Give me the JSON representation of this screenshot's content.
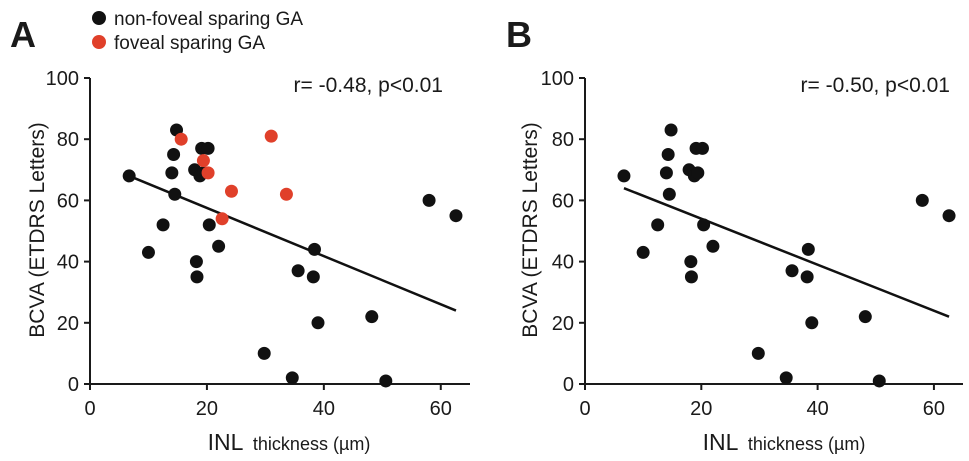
{
  "legend": [
    {
      "label": "non-foveal sparing GA",
      "color": "#111111"
    },
    {
      "label": "foveal sparing GA",
      "color": "#e0402a"
    }
  ],
  "chart_data": [
    {
      "type": "scatter",
      "panel": "A",
      "annotation": "r= -0.48, p<0.01",
      "ylabel": "BCVA (ETDRS Letters)",
      "xlabel_main": "INL",
      "xlabel_sub": "thickness (µm)",
      "xlim": [
        0,
        65
      ],
      "ylim": [
        0,
        100
      ],
      "xticks": [
        0,
        20,
        40,
        60
      ],
      "yticks": [
        0,
        20,
        40,
        60,
        80,
        100
      ],
      "grid": false,
      "legend_position": "top-left",
      "series": [
        {
          "name": "non-foveal sparing GA",
          "color": "#111111",
          "points": [
            [
              6.7,
              68
            ],
            [
              10,
              43
            ],
            [
              12.5,
              52
            ],
            [
              14,
              69
            ],
            [
              14.3,
              75
            ],
            [
              14.5,
              62
            ],
            [
              14.8,
              83
            ],
            [
              17.9,
              70
            ],
            [
              18.2,
              40
            ],
            [
              18.3,
              35
            ],
            [
              18.8,
              68
            ],
            [
              19.1,
              77
            ],
            [
              19.4,
              69
            ],
            [
              20.2,
              77
            ],
            [
              20.4,
              52
            ],
            [
              22,
              45
            ],
            [
              29.8,
              10
            ],
            [
              34.6,
              2
            ],
            [
              35.6,
              37
            ],
            [
              38.2,
              35
            ],
            [
              38.4,
              44
            ],
            [
              39,
              20
            ],
            [
              48.2,
              22
            ],
            [
              50.6,
              1
            ],
            [
              58,
              60
            ],
            [
              62.6,
              55
            ]
          ]
        },
        {
          "name": "foveal sparing GA",
          "color": "#e0402a",
          "points": [
            [
              15.6,
              80
            ],
            [
              19.4,
              73
            ],
            [
              20.2,
              69
            ],
            [
              22.6,
              54
            ],
            [
              24.2,
              63
            ],
            [
              31,
              81
            ],
            [
              33.6,
              62
            ]
          ]
        }
      ],
      "regression_line": {
        "x": [
          6.7,
          62.6
        ],
        "y": [
          68,
          24
        ]
      }
    },
    {
      "type": "scatter",
      "panel": "B",
      "annotation": "r= -0.50, p<0.01",
      "ylabel": "BCVA (ETDRS Letters)",
      "xlabel_main": "INL",
      "xlabel_sub": "thickness (µm)",
      "xlim": [
        0,
        65
      ],
      "ylim": [
        0,
        100
      ],
      "xticks": [
        0,
        20,
        40,
        60
      ],
      "yticks": [
        0,
        20,
        40,
        60,
        80,
        100
      ],
      "grid": false,
      "series": [
        {
          "name": "non-foveal sparing GA",
          "color": "#111111",
          "points": [
            [
              6.7,
              68
            ],
            [
              10,
              43
            ],
            [
              12.5,
              52
            ],
            [
              14,
              69
            ],
            [
              14.3,
              75
            ],
            [
              14.5,
              62
            ],
            [
              14.8,
              83
            ],
            [
              17.9,
              70
            ],
            [
              18.2,
              40
            ],
            [
              18.3,
              35
            ],
            [
              18.8,
              68
            ],
            [
              19.1,
              77
            ],
            [
              19.4,
              69
            ],
            [
              20.2,
              77
            ],
            [
              20.4,
              52
            ],
            [
              22,
              45
            ],
            [
              29.8,
              10
            ],
            [
              34.6,
              2
            ],
            [
              35.6,
              37
            ],
            [
              38.2,
              35
            ],
            [
              38.4,
              44
            ],
            [
              39,
              20
            ],
            [
              48.2,
              22
            ],
            [
              50.6,
              1
            ],
            [
              58,
              60
            ],
            [
              62.6,
              55
            ]
          ]
        }
      ],
      "regression_line": {
        "x": [
          6.7,
          62.6
        ],
        "y": [
          64,
          22
        ]
      }
    }
  ]
}
